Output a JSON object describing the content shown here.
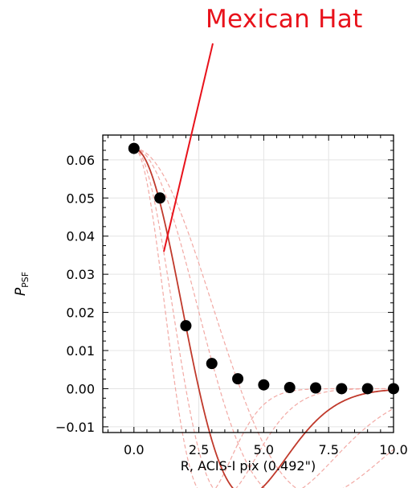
{
  "annotation": {
    "text": "Mexican Hat",
    "color": "#e8121b"
  },
  "chart_data": {
    "type": "line",
    "title": "",
    "xlabel": "R, ACIS-I pix (0.492\")",
    "ylabel_main": "P",
    "ylabel_sub": "PSF",
    "xlim": [
      -1.2,
      10.0
    ],
    "ylim": [
      -0.0115,
      0.0665
    ],
    "xticks": [
      0.0,
      2.5,
      5.0,
      7.5,
      10.0
    ],
    "xtick_labels": [
      "0.0",
      "2.5",
      "5.0",
      "7.5",
      "10.0"
    ],
    "yticks": [
      -0.01,
      0.0,
      0.01,
      0.02,
      0.03,
      0.04,
      0.05,
      0.06
    ],
    "ytick_labels": [
      "−0.01",
      "0.00",
      "0.01",
      "0.02",
      "0.03",
      "0.04",
      "0.05",
      "0.06"
    ],
    "grid": true,
    "points": {
      "x": [
        0,
        1,
        2,
        3,
        4,
        5,
        6,
        7,
        8,
        9,
        10
      ],
      "y": [
        0.063,
        0.05,
        0.0165,
        0.0066,
        0.0026,
        0.001,
        0.0003,
        0.0002,
        0.0,
        0.0,
        0.0
      ],
      "color": "#000000"
    },
    "best_fit": {
      "model": "mexican-hat",
      "amplitude": 0.063,
      "scale": 2.5,
      "color": "#c0392b"
    },
    "alternate_fits": {
      "model": "mexican-hat",
      "amplitude": 0.063,
      "scales": [
        1.6,
        2.0,
        3.3,
        4.1
      ],
      "color": "#f2a9a4"
    }
  }
}
